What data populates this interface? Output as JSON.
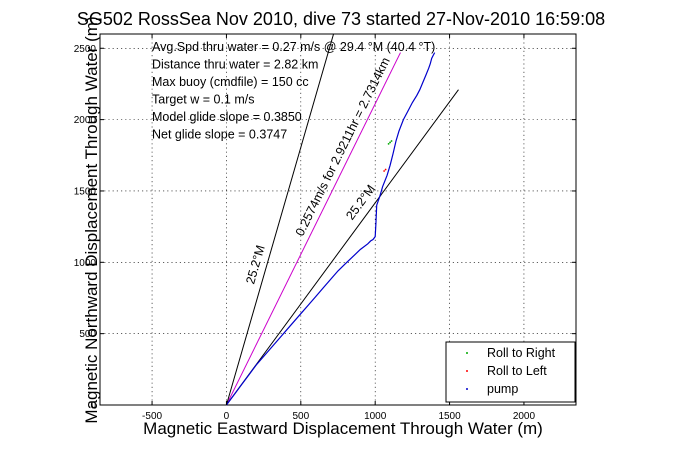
{
  "chart_data": {
    "type": "line",
    "title": "SG502 RossSea Nov 2010, dive 73 started 27-Nov-2010 16:59:08",
    "xlabel": "Magnetic Eastward Displacement Through Water (m)",
    "ylabel": "Magnetic Northward Displacement Through Water (m)",
    "xlim": [
      -850,
      2350
    ],
    "ylim": [
      0,
      2600
    ],
    "xticks": [
      -500,
      0,
      500,
      1000,
      1500,
      2000
    ],
    "yticks": [
      0,
      500,
      1000,
      1500,
      2000,
      2500
    ],
    "grid": true,
    "legend_position": "bottom-right",
    "annotations": [
      "Avg.Spd thru water = 0.27 m/s @ 29.4 °M (40.4 °T)",
      "Distance thru water = 2.82 km",
      "Max buoy (cmdfile) = 150 cc",
      "Target w = 0.1 m/s",
      "Model glide slope = 0.3850",
      "Net glide slope = 0.3747"
    ],
    "reference_lines": [
      {
        "label": "25.2°M",
        "color": "#000000",
        "points": [
          [
            0,
            0
          ],
          [
            1560,
            2210
          ]
        ]
      },
      {
        "label": "0.2574m/s for 2.9211hr = 2.7314km",
        "color": "#cc00cc",
        "points": [
          [
            0,
            0
          ],
          [
            1170,
            2470
          ]
        ]
      },
      {
        "label": "25.2°M",
        "color": "#000000",
        "points": [
          [
            0,
            0
          ],
          [
            720,
            2600
          ]
        ]
      }
    ],
    "series": [
      {
        "name": "pump",
        "color": "#0000cc",
        "x": [
          0,
          50,
          100,
          150,
          200,
          250,
          300,
          350,
          400,
          450,
          500,
          550,
          600,
          650,
          700,
          750,
          800,
          850,
          900,
          950,
          970,
          985,
          1000,
          1005,
          1010,
          1030,
          1050,
          1080,
          1100,
          1120,
          1140,
          1160,
          1190,
          1220,
          1250,
          1280,
          1300,
          1320,
          1340,
          1360,
          1370,
          1380,
          1390,
          1400
        ],
        "y": [
          0,
          70,
          140,
          210,
          280,
          340,
          400,
          460,
          520,
          580,
          640,
          700,
          760,
          820,
          880,
          940,
          990,
          1040,
          1090,
          1130,
          1150,
          1160,
          1180,
          1270,
          1400,
          1460,
          1530,
          1610,
          1680,
          1760,
          1850,
          1920,
          2000,
          2060,
          2120,
          2170,
          2210,
          2260,
          2310,
          2360,
          2390,
          2430,
          2450,
          2470
        ]
      },
      {
        "name": "Roll to Right",
        "color": "#00aa00",
        "x": [
          1090,
          1100,
          1110
        ],
        "y": [
          1830,
          1840,
          1850
        ]
      },
      {
        "name": "Roll to Left",
        "color": "#ff0000",
        "x": [
          1060,
          1070
        ],
        "y": [
          1640,
          1650
        ]
      }
    ],
    "legend": [
      "Roll to Right",
      "Roll to Left",
      "pump"
    ]
  }
}
